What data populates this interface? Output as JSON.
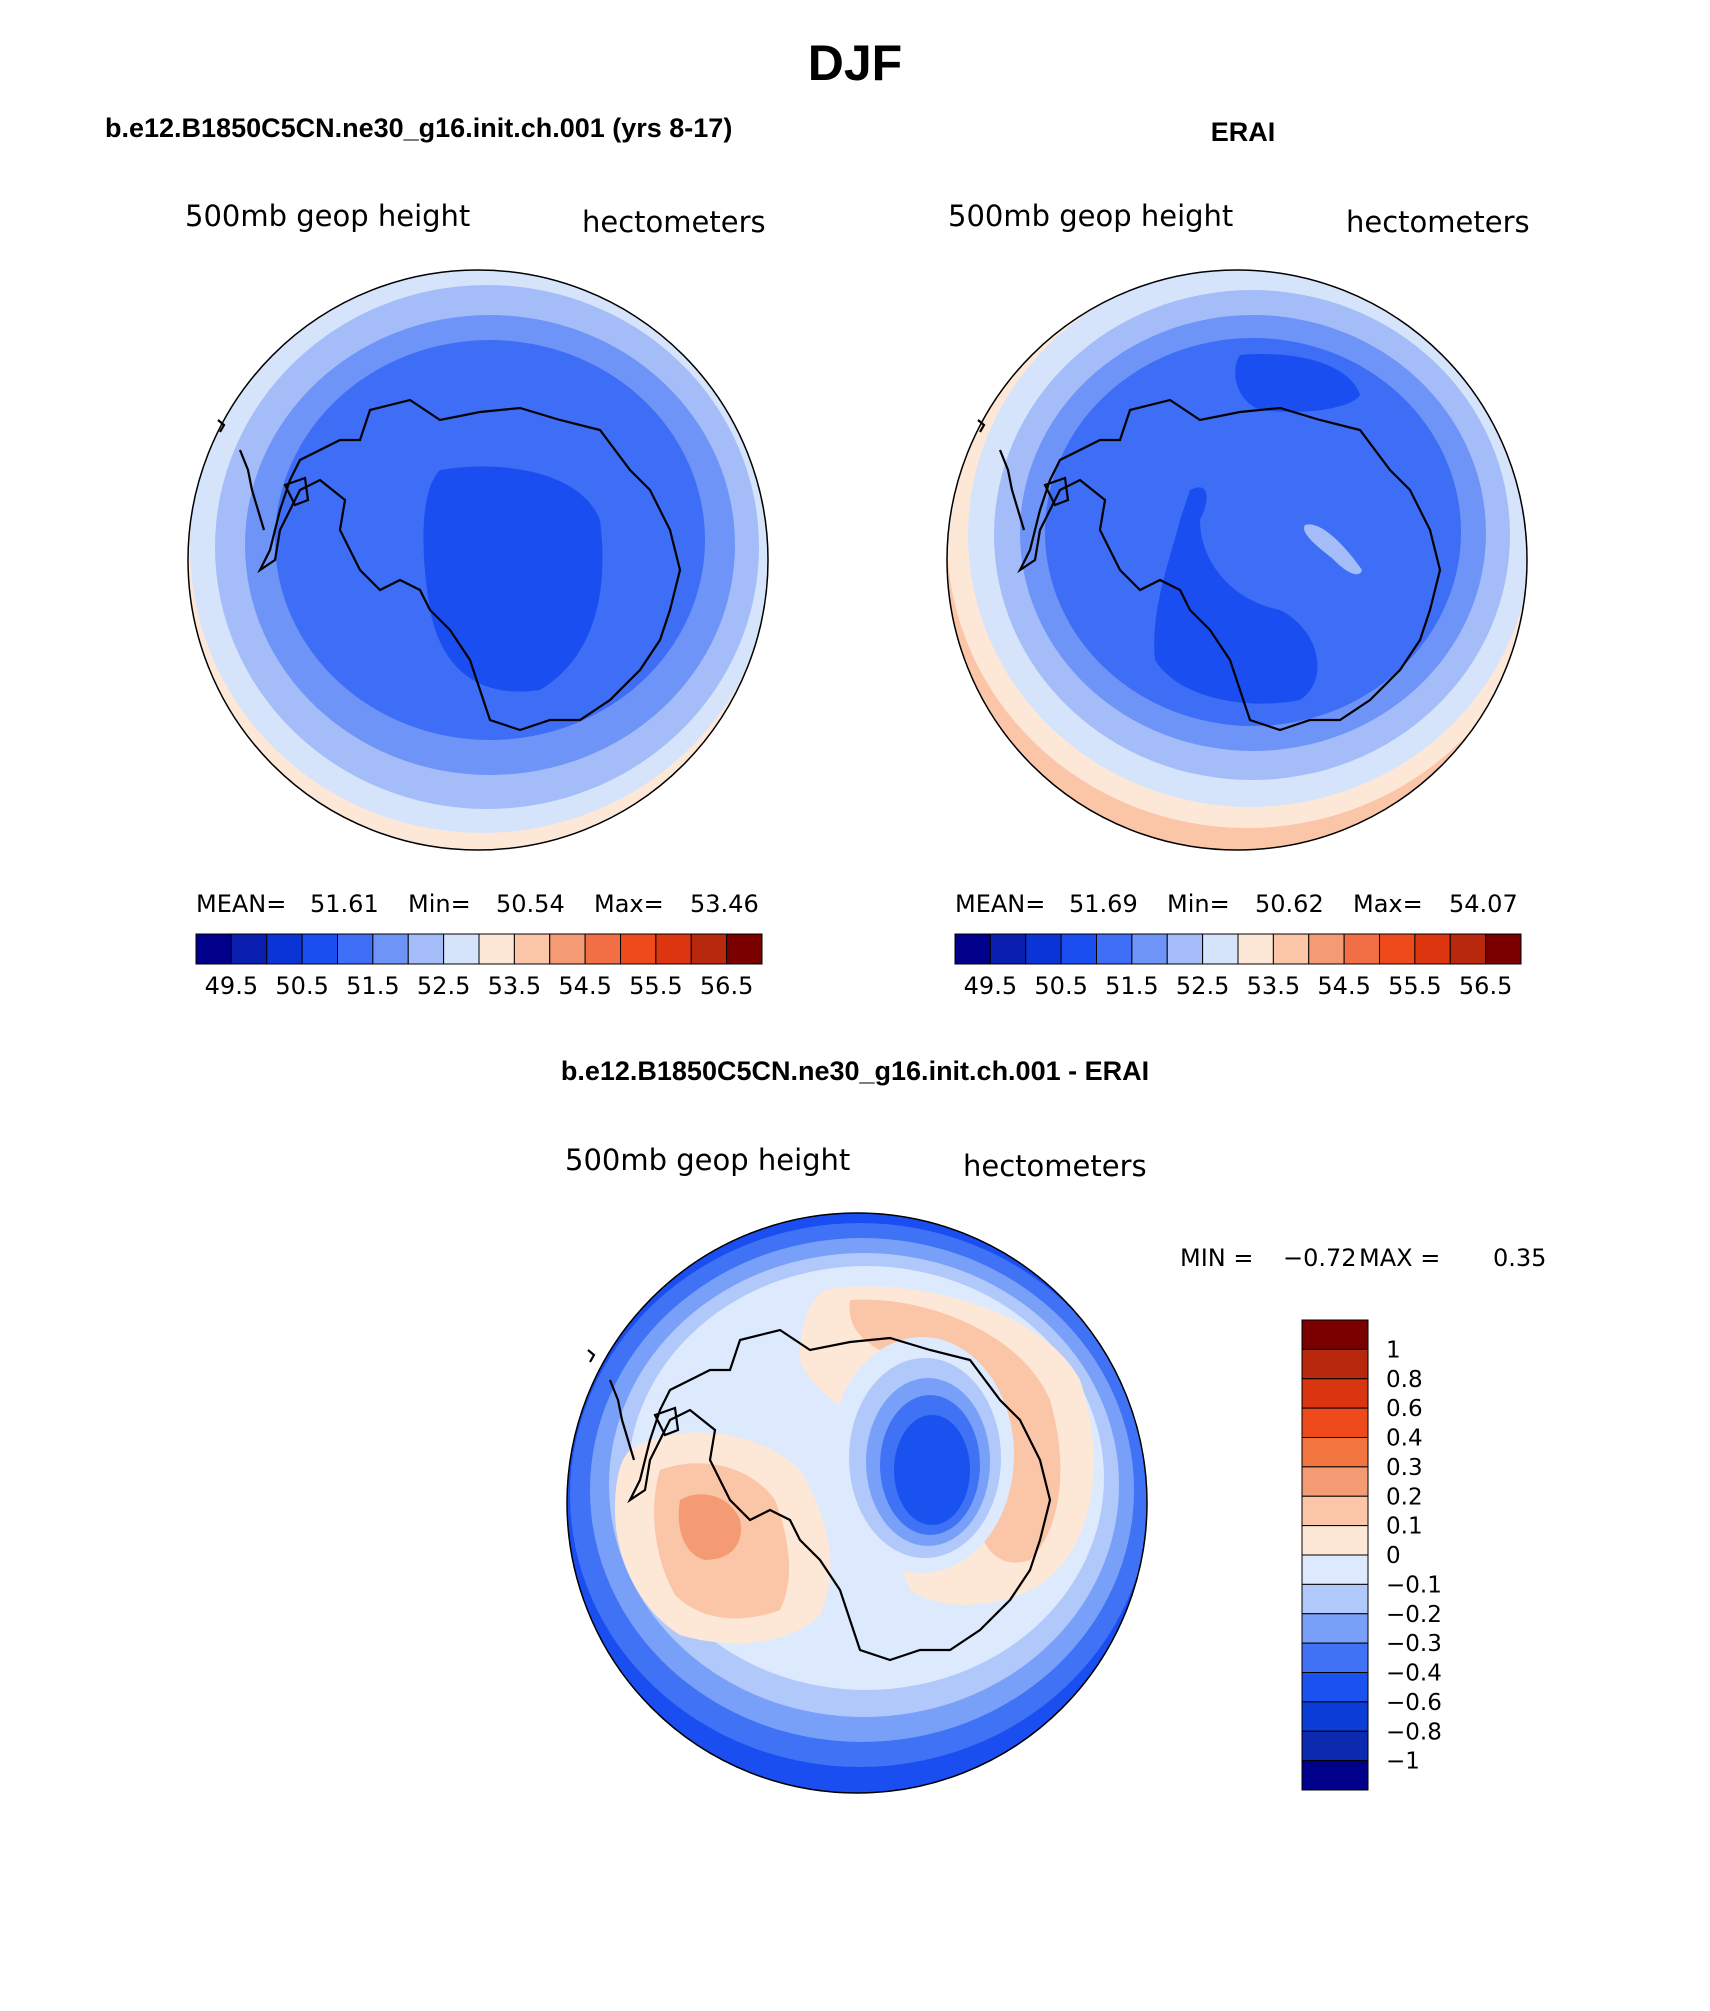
{
  "figure": {
    "season_title": "DJF",
    "panels": [
      {
        "title": "b.e12.B1850C5CN.ne30_g16.init.ch.001 (yrs 8-17)",
        "variable_label": "500mb geop height",
        "units_label": "hectometers",
        "stats": {
          "mean_label": "MEAN=",
          "mean": "51.61",
          "min_label": "Min=",
          "min": "50.54",
          "max_label": "Max=",
          "max": "53.46"
        },
        "colorbar_ticks": [
          "49.5",
          "50.5",
          "51.5",
          "52.5",
          "53.5",
          "54.5",
          "55.5",
          "56.5"
        ]
      },
      {
        "title": "ERAI",
        "variable_label": "500mb geop height",
        "units_label": "hectometers",
        "stats": {
          "mean_label": "MEAN=",
          "mean": "51.69",
          "min_label": "Min=",
          "min": "50.62",
          "max_label": "Max=",
          "max": "54.07"
        },
        "colorbar_ticks": [
          "49.5",
          "50.5",
          "51.5",
          "52.5",
          "53.5",
          "54.5",
          "55.5",
          "56.5"
        ]
      }
    ],
    "difference": {
      "title": "b.e12.B1850C5CN.ne30_g16.init.ch.001 - ERAI",
      "variable_label": "500mb geop height",
      "units_label": "hectometers",
      "minmax": {
        "min_label": "MIN =",
        "min": "−0.72",
        "max_label": "MAX =",
        "max": "0.35"
      },
      "colorbar_ticks": [
        "1",
        "0.8",
        "0.6",
        "0.4",
        "0.3",
        "0.2",
        "0.1",
        "0",
        "−0.1",
        "−0.2",
        "−0.3",
        "−0.4",
        "−0.6",
        "−0.8",
        "−1"
      ]
    },
    "palette_top": [
      "#00008b",
      "#0a1fb0",
      "#0b34d6",
      "#1a4ef0",
      "#3d6ef5",
      "#6f94f7",
      "#a4bdf9",
      "#d5e4fb",
      "#fde8d8",
      "#fbc5a8",
      "#f59b74",
      "#f26f45",
      "#ee4a1c",
      "#dc3510",
      "#b8280c",
      "#7a0000"
    ],
    "palette_diff": [
      "#00008b",
      "#0b2ab0",
      "#0b3ed6",
      "#1a52f0",
      "#3f72f5",
      "#79a0f8",
      "#b0c9fa",
      "#dde9fc",
      "#fde8d8",
      "#fbc5a8",
      "#f59b74",
      "#f2743f",
      "#ee4a1c",
      "#d93510",
      "#b8280c",
      "#7a0000"
    ]
  }
}
